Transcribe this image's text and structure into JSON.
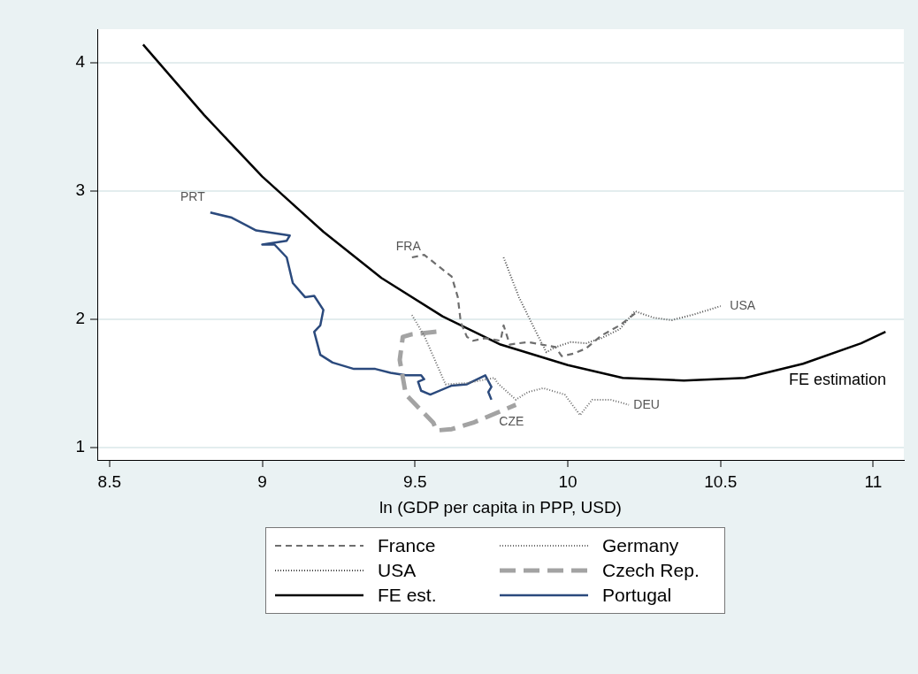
{
  "chart_data": {
    "type": "line",
    "xlabel": "ln (GDP per capita in PPP, USD)",
    "xlim": [
      8.46,
      11.1
    ],
    "xticks": [
      {
        "value": 8.5,
        "label": "8.5"
      },
      9,
      {
        "value": 9.5,
        "label": "9.5"
      },
      10,
      {
        "value": 10.5,
        "label": "10.5"
      },
      11
    ],
    "ylim": [
      0.9,
      4.26
    ],
    "yticks": [
      1,
      2,
      3,
      4
    ],
    "grid": "y",
    "legend": "bottom",
    "marker": "none",
    "series": [
      {
        "name": "France",
        "color": "#6e6e6e",
        "line_style": "dashed",
        "x": [
          9.49,
          9.53,
          9.62,
          9.64,
          9.65,
          9.67,
          9.69,
          9.73,
          9.78,
          9.79,
          9.81,
          9.87,
          9.96,
          9.98,
          10.02,
          10.06,
          10.11,
          10.17,
          10.23
        ],
        "values": [
          2.48,
          2.5,
          2.33,
          2.17,
          1.97,
          1.86,
          1.83,
          1.85,
          1.83,
          1.95,
          1.8,
          1.82,
          1.78,
          1.71,
          1.73,
          1.77,
          1.87,
          1.95,
          2.06
        ]
      },
      {
        "name": "Germany",
        "color": "#6e6e6e",
        "line_style": "dotted",
        "x": [
          9.49,
          9.53,
          9.6,
          9.67,
          9.76,
          9.77,
          9.83,
          9.87,
          9.92,
          9.99,
          10.04,
          10.08,
          10.14,
          10.2
        ],
        "values": [
          2.03,
          1.87,
          1.49,
          1.5,
          1.54,
          1.5,
          1.37,
          1.43,
          1.46,
          1.41,
          1.25,
          1.37,
          1.37,
          1.33
        ]
      },
      {
        "name": "USA",
        "color": "#4d4d4d",
        "line_style": "dotted",
        "x": [
          9.79,
          9.84,
          9.9,
          9.93,
          9.96,
          10.01,
          10.06,
          10.11,
          10.17,
          10.22,
          10.28,
          10.34,
          10.42,
          10.5
        ],
        "values": [
          2.48,
          2.17,
          1.88,
          1.74,
          1.78,
          1.82,
          1.81,
          1.85,
          1.92,
          2.06,
          2.01,
          1.99,
          2.04,
          2.1
        ]
      },
      {
        "name": "Czech Rep.",
        "color": "#a3a3a3",
        "line_style": "dashed",
        "x": [
          9.57,
          9.49,
          9.46,
          9.45,
          9.47,
          9.56,
          9.57,
          9.62,
          9.69,
          9.83
        ],
        "values": [
          1.9,
          1.88,
          1.86,
          1.68,
          1.41,
          1.19,
          1.13,
          1.14,
          1.19,
          1.33
        ]
      },
      {
        "name": "FE est.",
        "color": "#000000",
        "line_style": "solid",
        "x": [
          8.61,
          8.81,
          9.0,
          9.2,
          9.39,
          9.59,
          9.78,
          10.0,
          10.18,
          10.38,
          10.58,
          10.77,
          10.96,
          11.04
        ],
        "values": [
          4.14,
          3.59,
          3.11,
          2.68,
          2.32,
          2.02,
          1.8,
          1.64,
          1.54,
          1.52,
          1.54,
          1.65,
          1.81,
          1.9
        ]
      },
      {
        "name": "Portugal",
        "color": "#2b4a7d",
        "line_style": "solid",
        "x": [
          8.83,
          8.9,
          8.98,
          9.09,
          9.08,
          9.0,
          9.04,
          9.08,
          9.1,
          9.14,
          9.17,
          9.2,
          9.19,
          9.17,
          9.19,
          9.23,
          9.3,
          9.37,
          9.42,
          9.47,
          9.52,
          9.53,
          9.51,
          9.52,
          9.55,
          9.62,
          9.67,
          9.73,
          9.75,
          9.74,
          9.75
        ],
        "values": [
          2.83,
          2.79,
          2.69,
          2.65,
          2.61,
          2.58,
          2.58,
          2.48,
          2.28,
          2.17,
          2.18,
          2.07,
          1.95,
          1.9,
          1.72,
          1.66,
          1.61,
          1.61,
          1.58,
          1.56,
          1.56,
          1.53,
          1.51,
          1.44,
          1.41,
          1.48,
          1.49,
          1.56,
          1.47,
          1.43,
          1.37
        ]
      }
    ],
    "annotations": [
      {
        "text": "PRT",
        "x": 8.83,
        "y": 2.83
      },
      {
        "text": "FRA",
        "x": 9.49,
        "y": 2.48
      },
      {
        "text": "USA",
        "x": 10.5,
        "y": 2.1
      },
      {
        "text": "DEU",
        "x": 10.2,
        "y": 1.33
      },
      {
        "text": "CZE",
        "x": 9.83,
        "y": 1.33
      },
      {
        "text": "FE estimation",
        "x": 10.77,
        "y": 1.65
      }
    ]
  }
}
